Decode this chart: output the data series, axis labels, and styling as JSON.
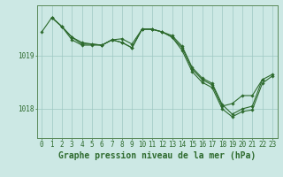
{
  "background_color": "#cce8e4",
  "grid_color": "#9dc8c2",
  "line_color": "#2d6a2d",
  "marker_color": "#2d6a2d",
  "xlabel": "Graphe pression niveau de la mer (hPa)",
  "xlabel_fontsize": 7.0,
  "tick_fontsize": 5.5,
  "ylabel_ticks": [
    1018,
    1019
  ],
  "xlim": [
    -0.5,
    23.5
  ],
  "ylim": [
    1017.45,
    1019.95
  ],
  "series": [
    [
      1019.45,
      1019.72,
      1019.55,
      1019.35,
      1019.25,
      1019.22,
      1019.2,
      1019.3,
      1019.25,
      1019.15,
      1019.5,
      1019.5,
      1019.45,
      1019.35,
      1019.15,
      1018.75,
      1018.55,
      1018.45,
      1018.05,
      1018.1,
      1018.25,
      1018.25,
      1018.55,
      null
    ],
    [
      null,
      1019.72,
      1019.55,
      1019.35,
      1019.22,
      1019.22,
      1019.2,
      1019.3,
      1019.32,
      1019.22,
      1019.5,
      1019.5,
      1019.45,
      1019.38,
      1019.18,
      1018.78,
      1018.58,
      1018.48,
      1018.08,
      1017.9,
      1018.0,
      1018.05,
      1018.55,
      1018.65
    ],
    [
      null,
      1019.72,
      1019.55,
      1019.3,
      1019.2,
      1019.2,
      1019.2,
      1019.3,
      1019.25,
      1019.15,
      1019.5,
      1019.5,
      1019.45,
      1019.35,
      1019.1,
      1018.7,
      1018.5,
      1018.4,
      1018.0,
      1017.85,
      1017.95,
      1017.98,
      1018.48,
      1018.62
    ]
  ],
  "x": [
    0,
    1,
    2,
    3,
    4,
    5,
    6,
    7,
    8,
    9,
    10,
    11,
    12,
    13,
    14,
    15,
    16,
    17,
    18,
    19,
    20,
    21,
    22,
    23
  ]
}
